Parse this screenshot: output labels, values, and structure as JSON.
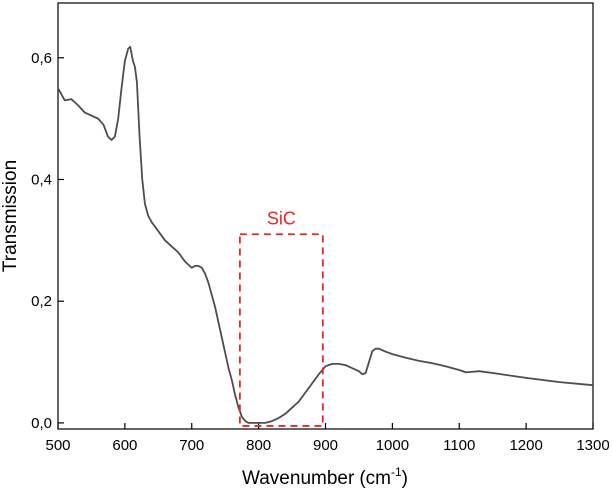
{
  "chart_data": {
    "type": "line",
    "title": "",
    "xlabel": "Wavenumber",
    "xlabel_unit_prefix": "(cm",
    "xlabel_unit_exp": "-1",
    "xlabel_unit_suffix": ")",
    "ylabel": "Transmission",
    "xlim": [
      500,
      1300
    ],
    "ylim": [
      -0.01,
      0.69
    ],
    "x_ticks": [
      500,
      600,
      700,
      800,
      900,
      1000,
      1100,
      1200,
      1300
    ],
    "x_tick_labels": [
      "500",
      "600",
      "700",
      "800",
      "900",
      "1000",
      "1100",
      "1200",
      "1300"
    ],
    "y_ticks": [
      0.0,
      0.2,
      0.4,
      0.6
    ],
    "y_tick_labels": [
      "0,0",
      "0,2",
      "0,4",
      "0,6"
    ],
    "grid": false,
    "line_color": "#4d4d4d",
    "annotation_color": "#e8262a",
    "series": [
      {
        "x": [
          500,
          510,
          520,
          530,
          540,
          550,
          560,
          568,
          575,
          580,
          585,
          590,
          595,
          600,
          605,
          608,
          612,
          615,
          618,
          622,
          626,
          630,
          635,
          640,
          650,
          660,
          670,
          680,
          690,
          700,
          705,
          710,
          715,
          720,
          725,
          730,
          735,
          740,
          745,
          750,
          755,
          760,
          765,
          770,
          775,
          780,
          785,
          790,
          800,
          810,
          820,
          830,
          840,
          850,
          860,
          870,
          880,
          890,
          900,
          910,
          920,
          930,
          940,
          950,
          955,
          960,
          965,
          970,
          975,
          980,
          990,
          1000,
          1020,
          1040,
          1060,
          1080,
          1100,
          1110,
          1120,
          1130,
          1150,
          1200,
          1250,
          1300
        ],
        "y": [
          0.55,
          0.53,
          0.532,
          0.522,
          0.51,
          0.505,
          0.5,
          0.49,
          0.47,
          0.465,
          0.47,
          0.5,
          0.55,
          0.595,
          0.615,
          0.618,
          0.595,
          0.585,
          0.56,
          0.47,
          0.4,
          0.36,
          0.34,
          0.33,
          0.315,
          0.3,
          0.29,
          0.28,
          0.265,
          0.255,
          0.258,
          0.258,
          0.255,
          0.245,
          0.23,
          0.21,
          0.19,
          0.165,
          0.14,
          0.115,
          0.09,
          0.07,
          0.045,
          0.025,
          0.01,
          0.003,
          0.0,
          0.0,
          0.0,
          0.0,
          0.003,
          0.008,
          0.015,
          0.025,
          0.035,
          0.05,
          0.065,
          0.08,
          0.093,
          0.097,
          0.097,
          0.095,
          0.09,
          0.085,
          0.08,
          0.082,
          0.1,
          0.118,
          0.122,
          0.122,
          0.117,
          0.113,
          0.107,
          0.102,
          0.098,
          0.093,
          0.087,
          0.083,
          0.084,
          0.085,
          0.082,
          0.074,
          0.067,
          0.062
        ]
      }
    ],
    "annotations": [
      {
        "type": "dashed-rectangle",
        "x_range": [
          772,
          896
        ],
        "y_range": [
          -0.005,
          0.31
        ],
        "label": "SiC"
      }
    ]
  }
}
